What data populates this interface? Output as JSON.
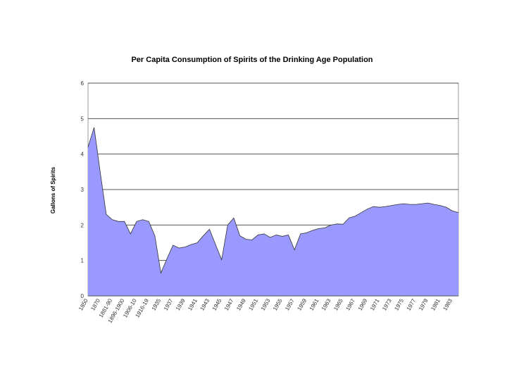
{
  "chart_data": {
    "type": "area",
    "title": "Per Capita Consumption of Spirits of the Drinking Age Population",
    "y_label": "Gallons of Spirits",
    "categories": [
      "1850",
      null,
      "1870",
      null,
      "1881-90",
      null,
      "1896-1900",
      null,
      "1906-10",
      null,
      "1916-19",
      null,
      "1935",
      null,
      "1937",
      null,
      "1939",
      null,
      "1941",
      null,
      "1943",
      null,
      "1945",
      null,
      "1947",
      null,
      "1949",
      null,
      "1951",
      null,
      "1953",
      null,
      "1955",
      null,
      "1957",
      null,
      "1959",
      null,
      "1961",
      null,
      "1963",
      null,
      "1965",
      null,
      "1967",
      null,
      "1969",
      null,
      "1971",
      null,
      "1973",
      null,
      "1975",
      null,
      "1977",
      null,
      "1979",
      null,
      "1981",
      null,
      "1983",
      null
    ],
    "values": [
      4.2,
      4.75,
      3.5,
      2.3,
      2.15,
      2.1,
      2.1,
      1.75,
      2.1,
      2.15,
      2.1,
      1.7,
      0.65,
      1.05,
      1.43,
      1.35,
      1.38,
      1.45,
      1.5,
      1.7,
      1.88,
      1.45,
      1.02,
      2.0,
      2.2,
      1.7,
      1.6,
      1.58,
      1.72,
      1.75,
      1.65,
      1.72,
      1.68,
      1.72,
      1.3,
      1.75,
      1.78,
      1.85,
      1.9,
      1.92,
      2.0,
      2.03,
      2.02,
      2.2,
      2.25,
      2.35,
      2.45,
      2.52,
      2.5,
      2.52,
      2.55,
      2.58,
      2.6,
      2.58,
      2.58,
      2.6,
      2.62,
      2.58,
      2.55,
      2.5,
      2.4,
      2.35
    ],
    "color": "#9999ff",
    "ylim": [
      0,
      6
    ],
    "yticks": [
      0,
      1,
      2,
      3,
      4,
      5,
      6
    ],
    "grid": true
  }
}
